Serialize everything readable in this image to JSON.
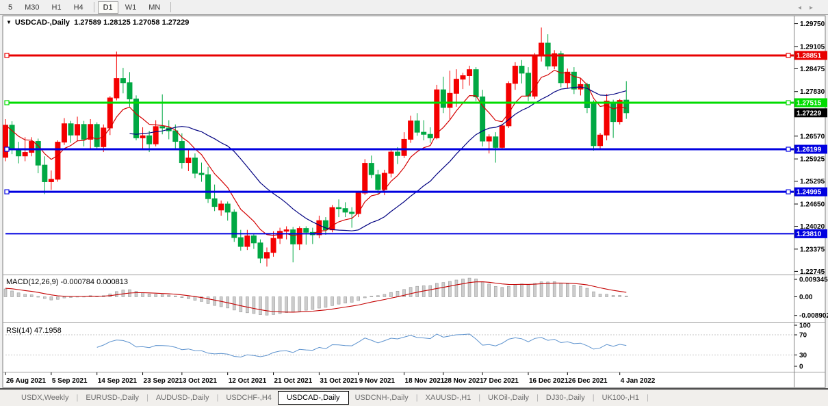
{
  "toolbar": {
    "timeframes": [
      "5",
      "M30",
      "H1",
      "H4",
      "D1",
      "W1",
      "MN"
    ],
    "active_timeframe": "D1"
  },
  "chart": {
    "title_symbol": "USDCAD-,Daily",
    "title_ohlc": "1.27589 1.28125 1.27058 1.27229",
    "triangle_icon": "▼"
  },
  "macd_panel": {
    "label": "MACD(12,26,9)",
    "values": "-0.000784 0.000813"
  },
  "rsi_panel": {
    "label": "RSI(14)",
    "value": "47.1958"
  },
  "colors": {
    "bull_candle": "#F40000",
    "bear_candle": "#00A843",
    "ma_fast": "#D40000",
    "ma_slow": "#000080",
    "line_red": "#E80000",
    "line_green": "#00DC00",
    "line_blue": "#0000E0",
    "current_badge": "#000000",
    "macd_hist_fill": "#CDCDCD",
    "macd_hist_stroke": "#989898",
    "macd_signal": "#C40000",
    "rsi_line": "#5C92CE",
    "level_dash": "#C4C4C4",
    "chart_bg": "#FFFFFF",
    "frame": "#808080"
  },
  "chart_data": {
    "type": "candlestick",
    "symbol": "USDCAD-",
    "timeframe": "Daily",
    "current_bar": {
      "open": 1.27589,
      "high": 1.28125,
      "low": 1.27058,
      "close": 1.27229
    },
    "current_price": "1.27229",
    "price_axis_range": {
      "top": 1.29935,
      "bottom": 1.22675
    },
    "price_axis_ticks": [
      "1.29750",
      "1.29105",
      "1.28475",
      "1.27830",
      "1.26570",
      "1.25925",
      "1.25295",
      "1.24650",
      "1.24020",
      "1.23375",
      "1.22745"
    ],
    "hlines": [
      {
        "price": 1.28851,
        "label": "1.28851",
        "color": "#E80000",
        "width": 3,
        "handles": true
      },
      {
        "price": 1.27515,
        "label": "1.27515",
        "color": "#00DC00",
        "width": 3,
        "handles": true
      },
      {
        "price": 1.26199,
        "label": "1.26199",
        "color": "#0000E0",
        "width": 3,
        "handles": true
      },
      {
        "price": 1.24995,
        "label": "1.24995",
        "color": "#0000E0",
        "width": 3,
        "handles": true
      },
      {
        "price": 1.2381,
        "label": "1.23810",
        "color": "#0000E0",
        "width": 2,
        "handles": false
      }
    ],
    "overlays": [
      {
        "name": "ma-fast",
        "type": "ema",
        "period": 8,
        "color": "#D40000"
      },
      {
        "name": "ma-slow",
        "type": "sma",
        "period": 20,
        "color": "#000080"
      }
    ],
    "macd": {
      "fast": 12,
      "slow": 26,
      "signal": 9,
      "axis_ticks": [
        {
          "v": 0.009345,
          "t": "0.009345"
        },
        {
          "v": 0,
          "t": "0.00"
        },
        {
          "v": -0.008902,
          "t": "-0.008902"
        }
      ],
      "last_macd": -0.000784,
      "last_signal": 0.000813
    },
    "rsi": {
      "period": 14,
      "last_value": 47.1958,
      "axis_ticks": [
        {
          "v": 100,
          "t": "100"
        },
        {
          "v": 70,
          "t": "70"
        },
        {
          "v": 30,
          "t": "30"
        },
        {
          "v": 0,
          "t": "0"
        }
      ],
      "dashed_levels": [
        70,
        30
      ]
    },
    "x_labels": [
      {
        "i": 0,
        "text": "26 Aug 2021"
      },
      {
        "i": 7,
        "text": "5 Sep 2021"
      },
      {
        "i": 14,
        "text": "14 Sep 2021"
      },
      {
        "i": 21,
        "text": "23 Sep 2021"
      },
      {
        "i": 27,
        "text": "3 Oct 2021"
      },
      {
        "i": 34,
        "text": "12 Oct 2021"
      },
      {
        "i": 41,
        "text": "21 Oct 2021"
      },
      {
        "i": 48,
        "text": "31 Oct 2021"
      },
      {
        "i": 54,
        "text": "9 Nov 2021"
      },
      {
        "i": 61,
        "text": "18 Nov 2021"
      },
      {
        "i": 67,
        "text": "28 Nov 2021"
      },
      {
        "i": 73,
        "text": "7 Dec 2021"
      },
      {
        "i": 80,
        "text": "16 Dec 2021"
      },
      {
        "i": 86,
        "text": "26 Dec 2021"
      },
      {
        "i": 94,
        "text": "4 Jan 2022"
      }
    ],
    "candles": [
      [
        1.2597,
        1.2705,
        1.2586,
        1.2688
      ],
      [
        1.2688,
        1.2699,
        1.2606,
        1.2618
      ],
      [
        1.2618,
        1.2641,
        1.258,
        1.2601
      ],
      [
        1.2601,
        1.2654,
        1.2586,
        1.2611
      ],
      [
        1.2611,
        1.2654,
        1.26,
        1.2642
      ],
      [
        1.2642,
        1.265,
        1.2552,
        1.2575
      ],
      [
        1.2575,
        1.26,
        1.2493,
        1.2528
      ],
      [
        1.2528,
        1.256,
        1.2505,
        1.2535
      ],
      [
        1.2535,
        1.2645,
        1.2528,
        1.264
      ],
      [
        1.264,
        1.2708,
        1.2632,
        1.2692
      ],
      [
        1.2692,
        1.27,
        1.2638,
        1.266
      ],
      [
        1.266,
        1.2712,
        1.2642,
        1.269
      ],
      [
        1.269,
        1.27,
        1.2628,
        1.2648
      ],
      [
        1.2648,
        1.2705,
        1.2622,
        1.269
      ],
      [
        1.269,
        1.2696,
        1.2618,
        1.2627
      ],
      [
        1.2627,
        1.269,
        1.2612,
        1.268
      ],
      [
        1.268,
        1.277,
        1.266,
        1.2765
      ],
      [
        1.2765,
        1.2896,
        1.2758,
        1.282
      ],
      [
        1.282,
        1.285,
        1.2778,
        1.2808
      ],
      [
        1.2808,
        1.2838,
        1.274,
        1.2762
      ],
      [
        1.2762,
        1.2772,
        1.2645,
        1.2652
      ],
      [
        1.2652,
        1.2682,
        1.262,
        1.2658
      ],
      [
        1.2658,
        1.2672,
        1.2612,
        1.2635
      ],
      [
        1.2635,
        1.2702,
        1.2628,
        1.2684
      ],
      [
        1.2684,
        1.2775,
        1.2662,
        1.268
      ],
      [
        1.268,
        1.2702,
        1.2648,
        1.2672
      ],
      [
        1.2672,
        1.269,
        1.2618,
        1.2642
      ],
      [
        1.2642,
        1.2665,
        1.2565,
        1.2582
      ],
      [
        1.2582,
        1.2622,
        1.2558,
        1.2595
      ],
      [
        1.2595,
        1.2608,
        1.2538,
        1.2552
      ],
      [
        1.2552,
        1.2582,
        1.2528,
        1.2548
      ],
      [
        1.2548,
        1.257,
        1.2468,
        1.248
      ],
      [
        1.248,
        1.252,
        1.2445,
        1.2458
      ],
      [
        1.2448,
        1.2475,
        1.2432,
        1.2465
      ],
      [
        1.2465,
        1.2472,
        1.2418,
        1.2442
      ],
      [
        1.2442,
        1.245,
        1.2358,
        1.237
      ],
      [
        1.237,
        1.2392,
        1.2333,
        1.2345
      ],
      [
        1.2345,
        1.2392,
        1.2335,
        1.2375
      ],
      [
        1.2375,
        1.2382,
        1.2338,
        1.2355
      ],
      [
        1.2355,
        1.2365,
        1.2298,
        1.2312
      ],
      [
        1.2312,
        1.2342,
        1.2288,
        1.2328
      ],
      [
        1.2328,
        1.2388,
        1.2316,
        1.2368
      ],
      [
        1.2368,
        1.2398,
        1.2352,
        1.2388
      ],
      [
        1.2388,
        1.2402,
        1.2365,
        1.2392
      ],
      [
        1.2392,
        1.24,
        1.23,
        1.2352
      ],
      [
        1.2352,
        1.2402,
        1.2335,
        1.2396
      ],
      [
        1.2396,
        1.2402,
        1.235,
        1.2385
      ],
      [
        1.2385,
        1.2398,
        1.2352,
        1.2378
      ],
      [
        1.2378,
        1.2432,
        1.2368,
        1.2418
      ],
      [
        1.2418,
        1.2428,
        1.2378,
        1.2392
      ],
      [
        1.2392,
        1.2462,
        1.2385,
        1.2455
      ],
      [
        1.2455,
        1.2478,
        1.2428,
        1.2452
      ],
      [
        1.2452,
        1.247,
        1.2428,
        1.2442
      ],
      [
        1.2442,
        1.2456,
        1.2398,
        1.2438
      ],
      [
        1.2438,
        1.2502,
        1.2428,
        1.2496
      ],
      [
        1.2496,
        1.2592,
        1.249,
        1.258
      ],
      [
        1.258,
        1.2602,
        1.2538,
        1.2548
      ],
      [
        1.2548,
        1.2562,
        1.2493,
        1.2506
      ],
      [
        1.2506,
        1.2562,
        1.249,
        1.2552
      ],
      [
        1.2552,
        1.2622,
        1.254,
        1.2612
      ],
      [
        1.2612,
        1.2626,
        1.2578,
        1.2602
      ],
      [
        1.2602,
        1.2668,
        1.2595,
        1.2648
      ],
      [
        1.2648,
        1.2715,
        1.2638,
        1.27
      ],
      [
        1.27,
        1.2722,
        1.2658,
        1.2668
      ],
      [
        1.2668,
        1.2702,
        1.2645,
        1.2662
      ],
      [
        1.2662,
        1.2682,
        1.2638,
        1.2652
      ],
      [
        1.2652,
        1.2802,
        1.2648,
        1.2788
      ],
      [
        1.2788,
        1.2825,
        1.2722,
        1.2738
      ],
      [
        1.2738,
        1.2842,
        1.2702,
        1.2778
      ],
      [
        1.2778,
        1.2846,
        1.274,
        1.2818
      ],
      [
        1.2818,
        1.2836,
        1.279,
        1.2828
      ],
      [
        1.2828,
        1.2856,
        1.28,
        1.2845
      ],
      [
        1.2845,
        1.2852,
        1.2756,
        1.2768
      ],
      [
        1.2768,
        1.2788,
        1.2628,
        1.2643
      ],
      [
        1.2643,
        1.2662,
        1.2608,
        1.2655
      ],
      [
        1.2655,
        1.2668,
        1.2582,
        1.2625
      ],
      [
        1.2625,
        1.2692,
        1.2618,
        1.2686
      ],
      [
        1.2686,
        1.2812,
        1.268,
        1.2806
      ],
      [
        1.2806,
        1.2866,
        1.2788,
        1.2855
      ],
      [
        1.2855,
        1.2872,
        1.2806,
        1.2835
      ],
      [
        1.2835,
        1.2852,
        1.2756,
        1.277
      ],
      [
        1.277,
        1.2892,
        1.2762,
        1.2884
      ],
      [
        1.2884,
        1.2964,
        1.2868,
        1.292
      ],
      [
        1.292,
        1.2945,
        1.2845,
        1.2855
      ],
      [
        1.2855,
        1.29,
        1.2846,
        1.289
      ],
      [
        1.289,
        1.2898,
        1.2795,
        1.2808
      ],
      [
        1.2808,
        1.2848,
        1.2792,
        1.2838
      ],
      [
        1.2838,
        1.2852,
        1.2776,
        1.279
      ],
      [
        1.279,
        1.2822,
        1.2772,
        1.2803
      ],
      [
        1.2803,
        1.2808,
        1.2722,
        1.2737
      ],
      [
        1.2752,
        1.2758,
        1.2616,
        1.263
      ],
      [
        1.263,
        1.2666,
        1.2618,
        1.266
      ],
      [
        1.266,
        1.2776,
        1.2645,
        1.2756
      ],
      [
        1.2748,
        1.276,
        1.2652,
        1.2698
      ],
      [
        1.2698,
        1.2762,
        1.269,
        1.2758
      ],
      [
        1.27589,
        1.28125,
        1.27058,
        1.27229
      ]
    ]
  },
  "tabs": {
    "items": [
      "USDX,Weekly",
      "EURUSD-,Daily",
      "AUDUSD-,Daily",
      "USDCHF-,H4",
      "USDCAD-,Daily",
      "USDCNH-,Daily",
      "XAUUSD-,H1",
      "UKOil-,Daily",
      "DJ30-,Daily",
      "UK100-,H1"
    ],
    "active": "USDCAD-,Daily",
    "scroll_left_icon": "◂",
    "scroll_right_icon": "▸"
  }
}
